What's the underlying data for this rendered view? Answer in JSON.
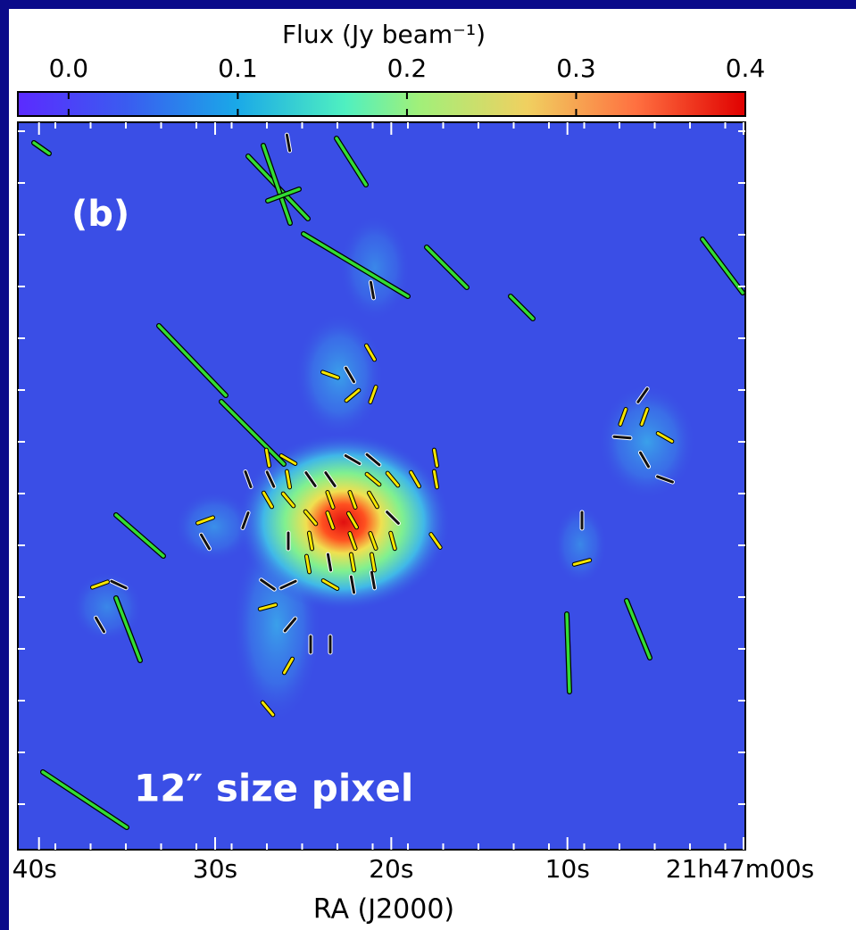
{
  "chart_data": {
    "type": "image",
    "colorbar_label": "Flux (Jy beam⁻¹)",
    "clim": [
      -0.03,
      0.4
    ],
    "cticks": [
      {
        "value": 0,
        "label": "0.0"
      },
      0.1,
      0.2,
      0.3,
      0.4
    ],
    "panel_label": "(b)",
    "annotation": "12″ size pixel",
    "xlabel": "RA (J2000)",
    "xlim": [
      41.2,
      -0.1
    ],
    "xticks": [
      {
        "value": 40,
        "label": "40s"
      },
      {
        "value": 30,
        "label": "30s"
      },
      {
        "value": 20,
        "label": "20s"
      },
      {
        "value": 10,
        "label": "10s"
      },
      {
        "value": 0,
        "label": "21h47m00s"
      }
    ]
  }
}
